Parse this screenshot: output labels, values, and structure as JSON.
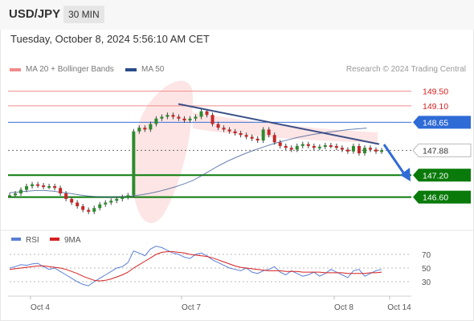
{
  "header": {
    "symbol": "USD/JPY",
    "timeframe": "30 MIN"
  },
  "datetime": "Tuesday, October 8, 2024 5:56:10 AM CET",
  "legend": {
    "bands": {
      "label": "MA 20 + Bollinger Bands",
      "color": "#f08c8c"
    },
    "ma50": {
      "label": "MA 50",
      "color": "#2b4c8a"
    }
  },
  "research": "Research © 2024 Trading Central",
  "chart_data": [
    {
      "type": "line",
      "x_labels": [
        "Oct 4",
        "Oct 7",
        "Oct 8",
        "Oct 14"
      ],
      "levels": [
        {
          "value": 149.5,
          "label": "149.50",
          "kind": "resistance",
          "color": "#f08c8c"
        },
        {
          "value": 149.1,
          "label": "149.10",
          "kind": "resistance",
          "color": "#f08c8c"
        },
        {
          "value": 148.65,
          "label": "148.65",
          "kind": "pivot",
          "color": "#3a6fd8"
        },
        {
          "value": 147.88,
          "label": "147.88",
          "kind": "last",
          "color": "#333333"
        },
        {
          "value": 147.2,
          "label": "147.20",
          "kind": "support",
          "color": "#0a7a0a"
        },
        {
          "value": 146.6,
          "label": "146.60",
          "kind": "support",
          "color": "#0a7a0a"
        }
      ],
      "price_series": [
        146.65,
        146.7,
        146.8,
        146.9,
        146.95,
        146.92,
        146.88,
        146.9,
        146.85,
        146.7,
        146.55,
        146.45,
        146.35,
        146.25,
        146.2,
        146.3,
        146.4,
        146.45,
        146.5,
        146.55,
        146.6,
        146.65,
        148.4,
        148.5,
        148.45,
        148.6,
        148.75,
        148.8,
        148.85,
        148.8,
        148.75,
        148.7,
        148.75,
        148.8,
        148.95,
        148.85,
        148.6,
        148.5,
        148.45,
        148.4,
        148.35,
        148.3,
        148.25,
        148.2,
        148.15,
        148.45,
        148.3,
        148.1,
        148.0,
        147.95,
        147.9,
        148.0,
        148.05,
        148.0,
        147.95,
        147.98,
        148.02,
        148.0,
        147.95,
        147.9,
        147.85,
        148.0,
        147.8,
        147.95,
        147.9,
        147.85,
        147.88
      ],
      "ma50_series": [
        146.72,
        146.74,
        146.76,
        146.78,
        146.78,
        146.76,
        146.73,
        146.7,
        146.66,
        146.63,
        146.61,
        146.6,
        146.6,
        146.61,
        146.63,
        146.66,
        146.7,
        146.75,
        146.81,
        146.88,
        146.96,
        147.05,
        147.18,
        147.32,
        147.46,
        147.58,
        147.69,
        147.79,
        147.88,
        147.96,
        148.04,
        148.11,
        148.17,
        148.23,
        148.28,
        148.32,
        148.36,
        148.39,
        148.42,
        148.45,
        148.47,
        148.49
      ],
      "trendline": {
        "from": 149.15,
        "to": 148.05
      },
      "y_range": [
        145.8,
        149.8
      ],
      "arrow": "down"
    },
    {
      "type": "line",
      "title": "",
      "legend": [
        {
          "name": "RSI",
          "color": "#5b7fd6"
        },
        {
          "name": "9MA",
          "color": "#d62020"
        }
      ],
      "y_ticks": [
        70,
        50,
        30
      ],
      "y_range": [
        10,
        90
      ],
      "series": [
        {
          "name": "RSI",
          "values": [
            50,
            52,
            55,
            54,
            56,
            57,
            52,
            48,
            50,
            45,
            40,
            35,
            30,
            26,
            24,
            30,
            35,
            40,
            45,
            50,
            52,
            58,
            75,
            72,
            68,
            78,
            82,
            80,
            76,
            72,
            70,
            66,
            64,
            70,
            72,
            68,
            62,
            58,
            54,
            50,
            48,
            46,
            50,
            44,
            42,
            46,
            48,
            52,
            44,
            40,
            46,
            42,
            38,
            40,
            44,
            38,
            42,
            48,
            44,
            40,
            36,
            46,
            48,
            38,
            42,
            46,
            48
          ]
        },
        {
          "name": "9MA",
          "values": [
            48,
            49,
            50,
            51,
            52,
            53,
            53,
            52,
            51,
            50,
            48,
            45,
            42,
            38,
            35,
            32,
            31,
            32,
            34,
            37,
            40,
            44,
            50,
            55,
            60,
            65,
            70,
            73,
            74,
            74,
            73,
            72,
            70,
            69,
            68,
            67,
            65,
            62,
            59,
            56,
            53,
            51,
            50,
            49,
            48,
            47,
            46,
            46,
            46,
            45,
            45,
            45,
            44,
            44,
            44,
            44,
            43,
            43,
            43,
            43,
            42,
            42,
            42,
            42,
            43,
            43,
            44
          ]
        }
      ]
    }
  ]
}
